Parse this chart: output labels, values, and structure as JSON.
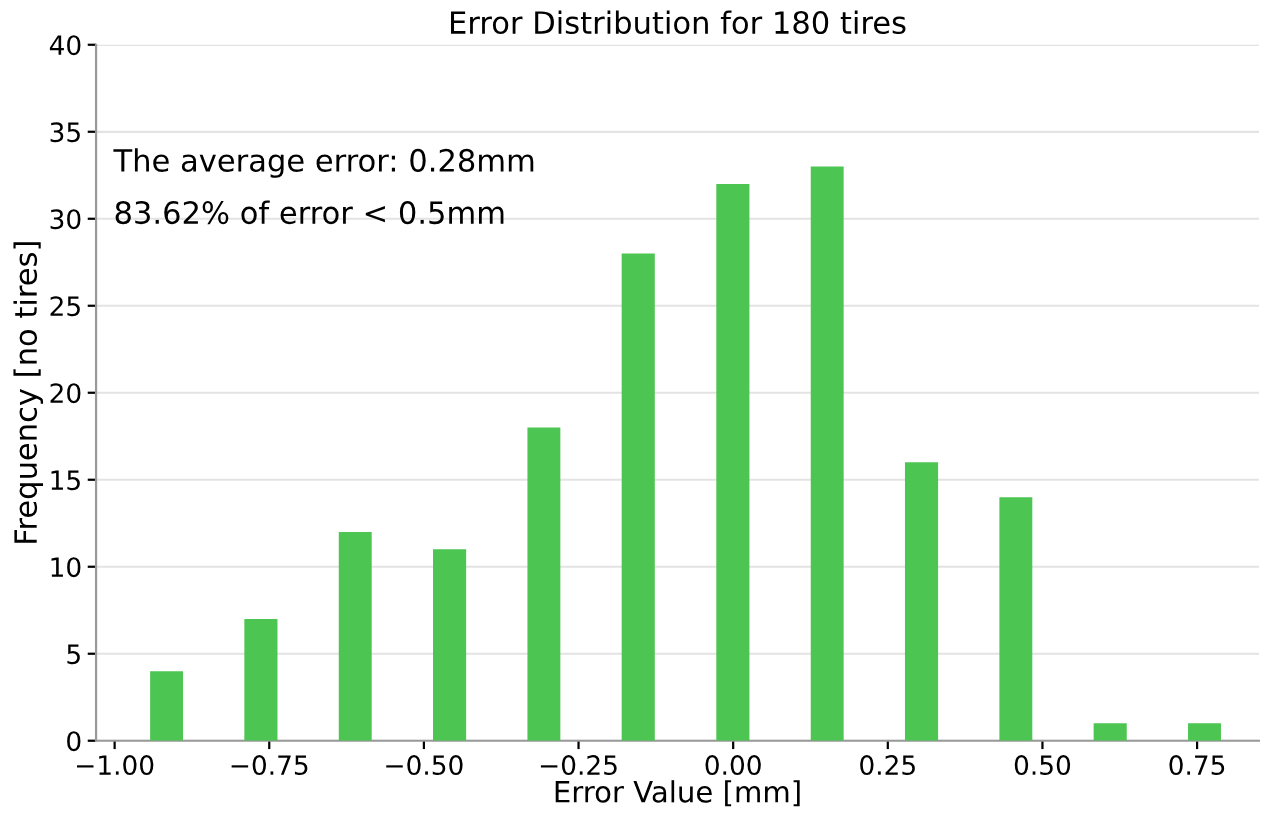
{
  "chart_data": {
    "type": "histogram",
    "title": "Error Distribution for 180 tires",
    "xlabel": "Error Value [mm]",
    "ylabel": "Frequency [no tires]",
    "bins": [
      -0.992,
      -0.84,
      -0.687,
      -0.535,
      -0.382,
      -0.23,
      -0.077,
      0.076,
      0.228,
      0.381,
      0.533,
      0.686,
      0.838
    ],
    "values": [
      4,
      7,
      12,
      11,
      18,
      28,
      32,
      33,
      16,
      14,
      1,
      1
    ],
    "color": "#4cc552",
    "xlim": [
      -1.03,
      0.85
    ],
    "xticks": [
      {
        "value": -1.0,
        "label": "−1.00"
      },
      {
        "value": -0.75,
        "label": "−0.75"
      },
      {
        "value": -0.5,
        "label": "−0.50"
      },
      {
        "value": -0.25,
        "label": "−0.25"
      },
      {
        "value": 0,
        "label": "0.00"
      },
      {
        "value": 0.25,
        "label": "0.25"
      },
      {
        "value": 0.5,
        "label": "0.50"
      },
      {
        "value": 0.75,
        "label": "0.75"
      }
    ],
    "ylim": [
      0,
      40
    ],
    "yticks": [
      0,
      5,
      10,
      15,
      20,
      25,
      30,
      35,
      40
    ],
    "grid": "y",
    "annotations": [
      "The average error: 0.28mm",
      "83.62% of error < 0.5mm"
    ]
  }
}
